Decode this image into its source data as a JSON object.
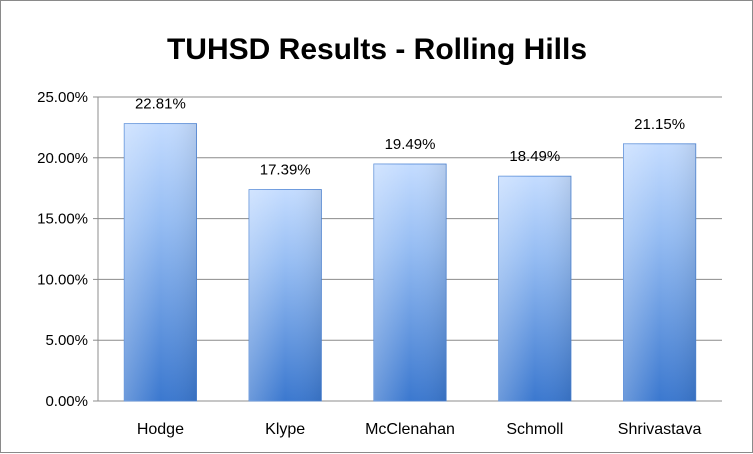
{
  "chart_data": {
    "type": "bar",
    "title": "TUHSD Results - Rolling Hills",
    "categories": [
      "Hodge",
      "Klype",
      "McClenahan",
      "Schmoll",
      "Shrivastava"
    ],
    "values": [
      22.81,
      17.39,
      19.49,
      18.49,
      21.15
    ],
    "value_labels": [
      "22.81%",
      "17.39%",
      "19.49%",
      "18.49%",
      "21.15%"
    ],
    "yticks": [
      "0.00%",
      "5.00%",
      "10.00%",
      "15.00%",
      "20.00%",
      "25.00%"
    ],
    "ylim": [
      0,
      25
    ],
    "xlabel": "",
    "ylabel": "",
    "grid": true,
    "legend": "none",
    "bar_color_light": "#b9d6ff",
    "bar_color_dark": "#3d7ad0",
    "grid_color": "#8c8c8c"
  }
}
